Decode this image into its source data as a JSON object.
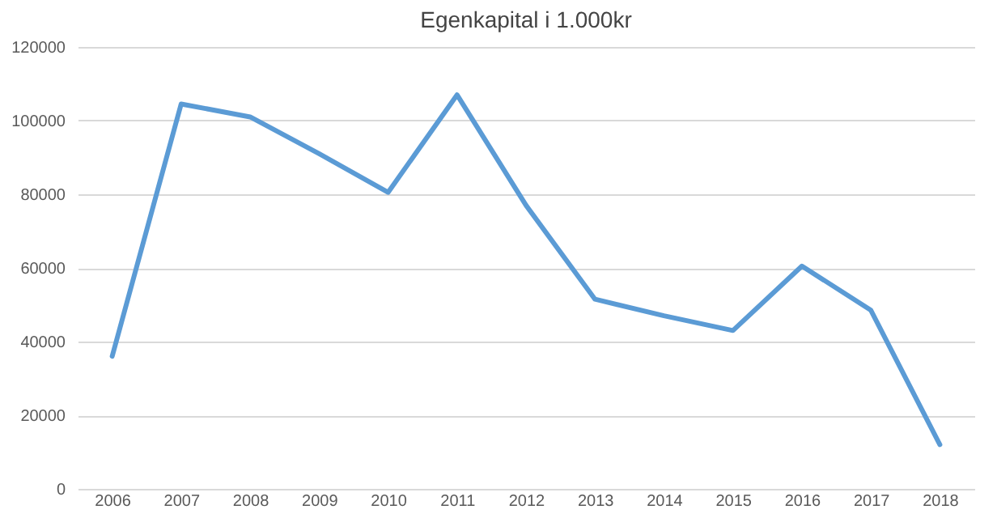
{
  "chart_data": {
    "type": "line",
    "title": "Egenkapital i 1.000kr",
    "categories": [
      "2006",
      "2007",
      "2008",
      "2009",
      "2010",
      "2011",
      "2012",
      "2013",
      "2014",
      "2015",
      "2016",
      "2017",
      "2018"
    ],
    "series": [
      {
        "color": "#5b9bd5",
        "values": [
          36000,
          104500,
          101000,
          91000,
          80500,
          107000,
          77000,
          51500,
          47000,
          43000,
          60500,
          48500,
          12000
        ]
      }
    ],
    "ylim": [
      0,
      120000
    ],
    "yticks": [
      0,
      20000,
      40000,
      60000,
      80000,
      100000,
      120000
    ],
    "grid": "y",
    "legend": false,
    "marker": "none",
    "line_style": "solid"
  }
}
